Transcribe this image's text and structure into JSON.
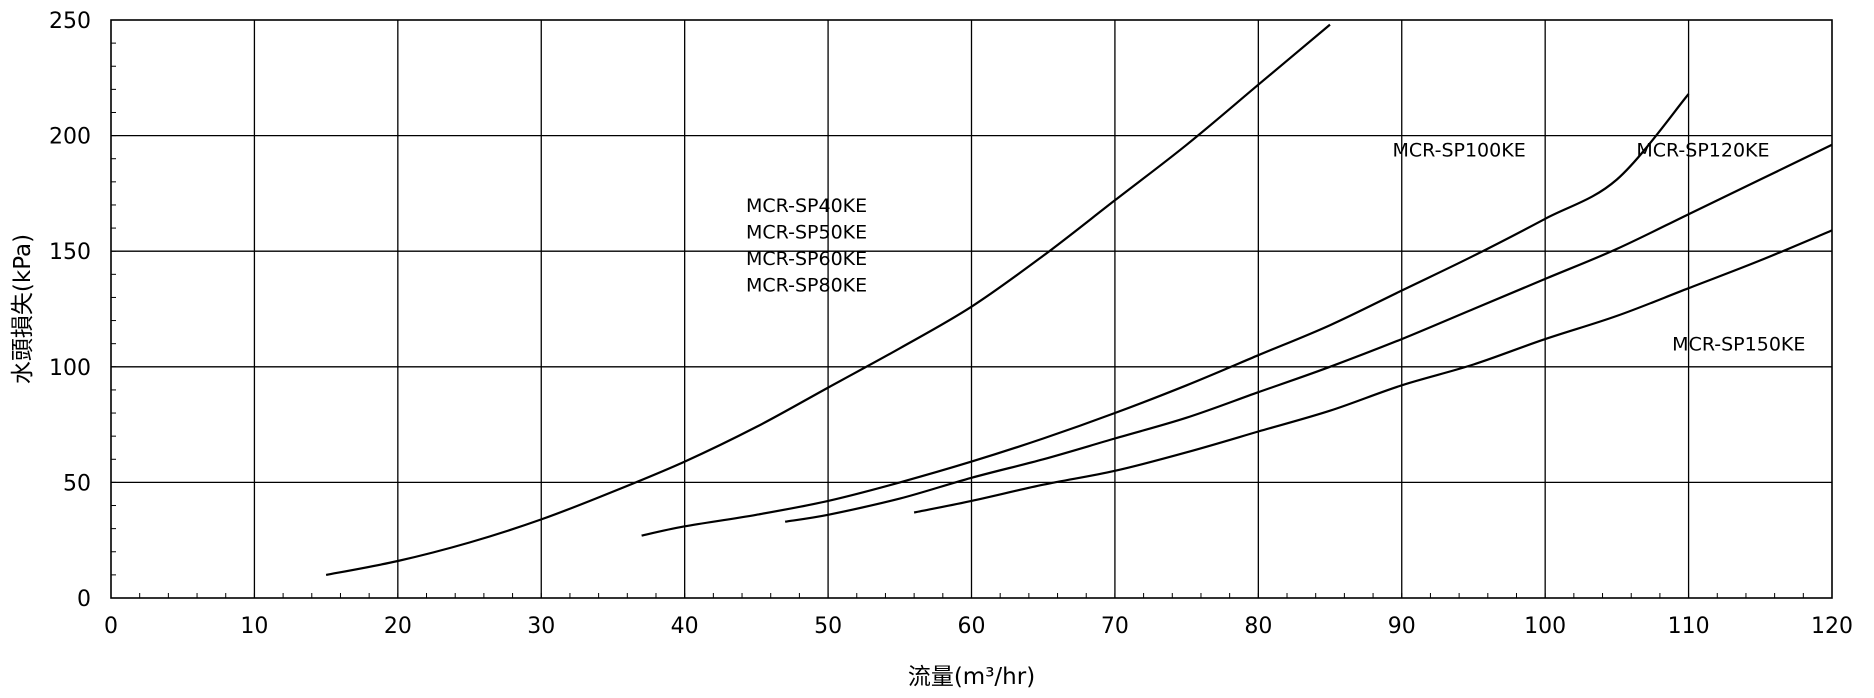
{
  "chart_data": {
    "type": "line",
    "title": "",
    "xlabel": "流量",
    "xlabel_unit": "(m³/hr)",
    "ylabel": "水頭損失(kPa)",
    "xlim": [
      0,
      120
    ],
    "ylim": [
      0,
      250
    ],
    "x_ticks": [
      0,
      10,
      20,
      30,
      40,
      50,
      60,
      70,
      80,
      90,
      100,
      110,
      120
    ],
    "y_ticks": [
      0,
      50,
      100,
      150,
      200,
      250
    ],
    "grid": true,
    "legend": "none",
    "series": [
      {
        "name": "MCR-SP40KE / MCR-SP50KE / MCR-SP60KE / MCR-SP80KE",
        "x": [
          15,
          20,
          25,
          30,
          35,
          40,
          45,
          50,
          55,
          60,
          65,
          70,
          75,
          80,
          85
        ],
        "y": [
          10,
          16,
          24,
          34,
          46,
          59,
          74,
          91,
          108,
          126,
          148,
          172,
          196,
          222,
          248
        ]
      },
      {
        "name": "MCR-SP100KE",
        "x": [
          37,
          40,
          45,
          50,
          55,
          60,
          65,
          70,
          75,
          80,
          85,
          90,
          95,
          100,
          105,
          110
        ],
        "y": [
          27,
          31,
          36,
          42,
          50,
          59,
          69,
          80,
          92,
          105,
          118,
          133,
          148,
          164,
          181,
          218
        ]
      },
      {
        "name": "MCR-SP120KE",
        "x": [
          47,
          50,
          55,
          60,
          65,
          70,
          75,
          80,
          85,
          90,
          95,
          100,
          105,
          110,
          115,
          120
        ],
        "y": [
          33,
          36,
          43,
          52,
          60,
          69,
          78,
          89,
          100,
          112,
          125,
          138,
          151,
          166,
          181,
          196
        ]
      },
      {
        "name": "MCR-SP150KE",
        "x": [
          56,
          60,
          65,
          70,
          75,
          80,
          85,
          90,
          95,
          100,
          105,
          110,
          115,
          120
        ],
        "y": [
          37,
          42,
          49,
          55,
          63,
          72,
          81,
          92,
          101,
          112,
          122,
          134,
          146,
          159
        ]
      }
    ],
    "annotations": [
      {
        "text": "MCR-SP40KE",
        "x": 48.5,
        "y": 167
      },
      {
        "text": "MCR-SP50KE",
        "x": 48.5,
        "y": 155.5
      },
      {
        "text": "MCR-SP60KE",
        "x": 48.5,
        "y": 144
      },
      {
        "text": "MCR-SP80KE",
        "x": 48.5,
        "y": 132.5
      },
      {
        "text": "MCR-SP100KE",
        "x": 94,
        "y": 191
      },
      {
        "text": "MCR-SP120KE",
        "x": 111,
        "y": 191
      },
      {
        "text": "MCR-SP150KE",
        "x": 113.5,
        "y": 107
      }
    ]
  }
}
